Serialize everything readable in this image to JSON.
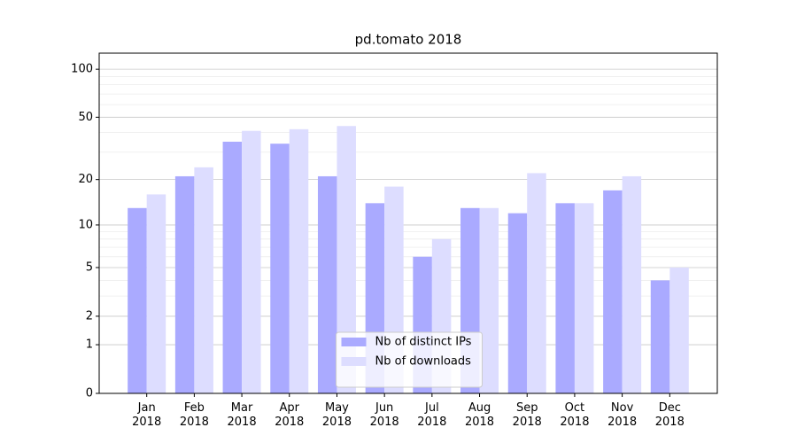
{
  "chart_data": {
    "type": "bar",
    "title": "pd.tomato 2018",
    "categories": [
      "Jan\n2018",
      "Feb\n2018",
      "Mar\n2018",
      "Apr\n2018",
      "May\n2018",
      "Jun\n2018",
      "Jul\n2018",
      "Aug\n2018",
      "Sep\n2018",
      "Oct\n2018",
      "Nov\n2018",
      "Dec\n2018"
    ],
    "series": [
      {
        "name": "Nb of distinct IPs",
        "color": "#aaaaff",
        "values": [
          13,
          21,
          35,
          34,
          21,
          14,
          6,
          13,
          12,
          14,
          17,
          4
        ]
      },
      {
        "name": "Nb of downloads",
        "color": "#ddddff",
        "values": [
          16,
          24,
          41,
          42,
          44,
          18,
          8,
          13,
          22,
          14,
          21,
          5
        ]
      }
    ],
    "yscale": "log1p",
    "ylim": [
      0,
      126
    ],
    "yticks": [
      0,
      1,
      2,
      5,
      10,
      20,
      50,
      100
    ],
    "yminorticks": [
      3,
      4,
      6,
      7,
      8,
      9,
      30,
      40,
      60,
      70,
      80,
      90
    ],
    "grid": true,
    "legend": "lower center"
  }
}
